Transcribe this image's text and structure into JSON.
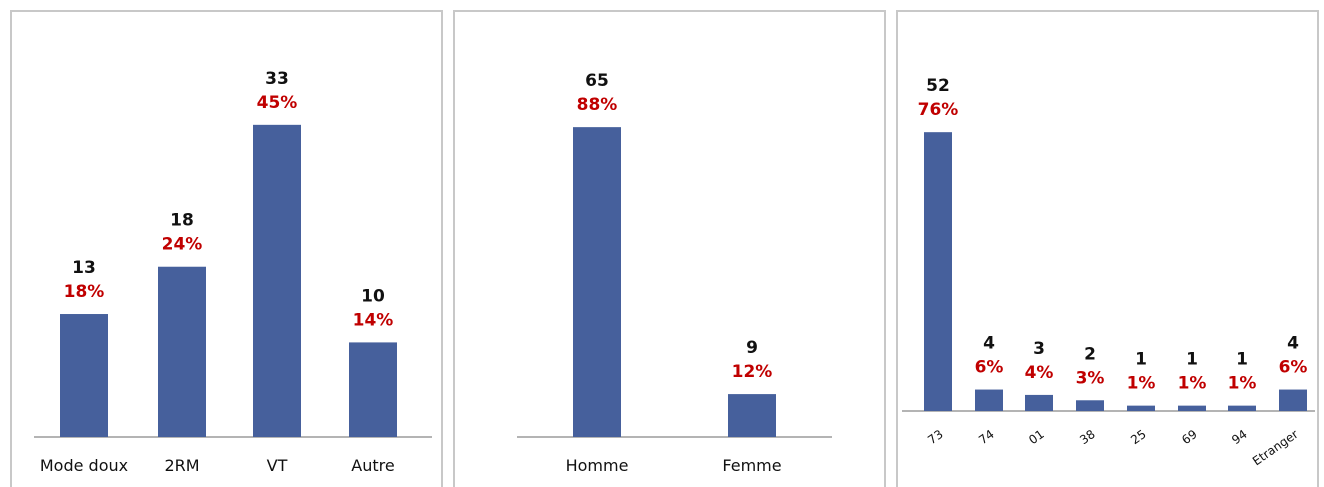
{
  "colors": {
    "bar": "#46609c",
    "percent": "#c00000",
    "axis": "#b4b4b4",
    "border": "#c8c8c8"
  },
  "chart_data": [
    {
      "type": "bar",
      "title": "",
      "xlabel": "",
      "ylabel": "",
      "categories": [
        "Mode doux",
        "2RM",
        "VT",
        "Autre"
      ],
      "values": [
        13,
        18,
        33,
        10
      ],
      "percent_labels": [
        "18%",
        "24%",
        "45%",
        "14%"
      ],
      "ylim": [
        0,
        37
      ],
      "grid": false,
      "legend": "none"
    },
    {
      "type": "bar",
      "title": "",
      "xlabel": "",
      "ylabel": "",
      "categories": [
        "Homme",
        "Femme"
      ],
      "values": [
        65,
        9
      ],
      "percent_labels": [
        "88%",
        "12%"
      ],
      "ylim": [
        0,
        73
      ],
      "grid": false,
      "legend": "none"
    },
    {
      "type": "bar",
      "title": "",
      "xlabel": "",
      "ylabel": "",
      "categories": [
        "73",
        "74",
        "01",
        "38",
        "25",
        "69",
        "94",
        "Etranger"
      ],
      "values": [
        52,
        4,
        3,
        2,
        1,
        1,
        1,
        4
      ],
      "percent_labels": [
        "76%",
        "6%",
        "4%",
        "3%",
        "1%",
        "1%",
        "1%",
        "6%"
      ],
      "ylim": [
        0,
        58
      ],
      "grid": false,
      "legend": "none",
      "tick_rotation": -35
    }
  ]
}
